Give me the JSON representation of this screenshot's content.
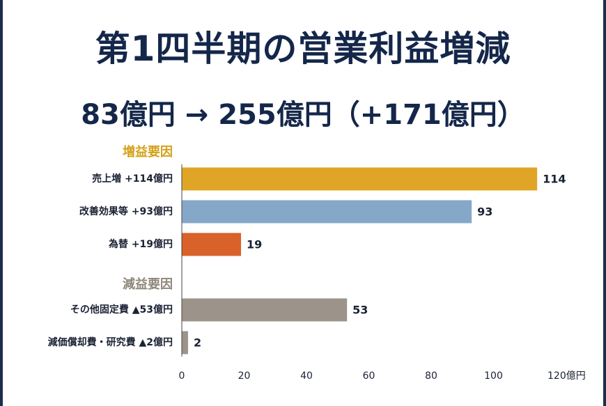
{
  "header": {
    "title": "第1四半期の営業利益増減",
    "subtitle": "83億円 → 255億円（+171億円）"
  },
  "chart_data": {
    "type": "bar",
    "orientation": "horizontal",
    "groups": [
      {
        "label": "増益要因",
        "color": "#d4a017",
        "items": [
          {
            "label": "売上増 +114億円",
            "value": 114,
            "value_label": "114",
            "color": "#e0a526"
          },
          {
            "label": "改善効果等 +93億円",
            "value": 93,
            "value_label": "93",
            "color": "#86a8c8"
          },
          {
            "label": "為替 +19億円",
            "value": 19,
            "value_label": "19",
            "color": "#d9612a"
          }
        ]
      },
      {
        "label": "減益要因",
        "color": "#8f877c",
        "items": [
          {
            "label": "その他固定費 ▲53億円",
            "value": 53,
            "value_label": "53",
            "color": "#9c948a"
          },
          {
            "label": "減価償却費・研究費 ▲2億円",
            "value": 2,
            "value_label": "2",
            "color": "#9c948a"
          }
        ]
      }
    ],
    "xlim": [
      0,
      120
    ],
    "x_ticks": [
      0,
      20,
      40,
      60,
      80,
      100,
      120
    ],
    "x_tick_labels": [
      "0",
      "20",
      "40",
      "60",
      "80",
      "100",
      "120億円"
    ],
    "grid": false
  }
}
